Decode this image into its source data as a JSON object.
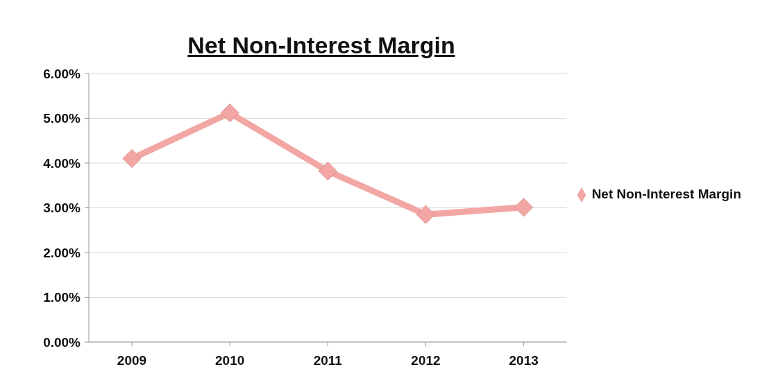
{
  "chart_data": {
    "type": "line",
    "title": "Net Non-Interest Margin",
    "categories": [
      "2009",
      "2010",
      "2011",
      "2012",
      "2013"
    ],
    "series": [
      {
        "name": "Net Non-Interest Margin",
        "color": "#f2a7a5",
        "values": [
          4.1,
          5.12,
          3.82,
          2.85,
          3.01
        ]
      }
    ],
    "ylim": [
      0,
      6
    ],
    "yticks": [
      {
        "value": 0,
        "label": "0.00%"
      },
      {
        "value": 1,
        "label": "1.00%"
      },
      {
        "value": 2,
        "label": "2.00%"
      },
      {
        "value": 3,
        "label": "3.00%"
      },
      {
        "value": 4,
        "label": "4.00%"
      },
      {
        "value": 5,
        "label": "5.00%"
      },
      {
        "value": 6,
        "label": "6.00%"
      }
    ],
    "grid": "y",
    "legend": "right",
    "marker": "diamond",
    "line_style": "solid"
  }
}
